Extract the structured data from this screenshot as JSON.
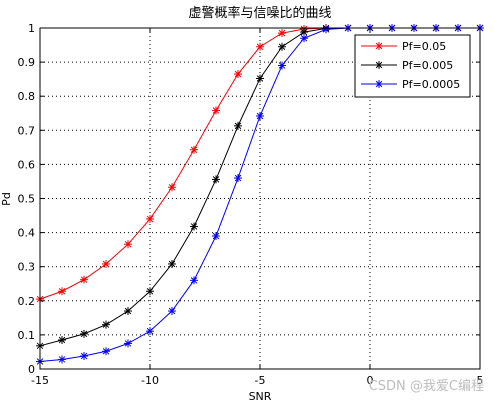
{
  "chart_data": {
    "type": "line",
    "title": "虚警概率与信噪比的曲线",
    "xlabel": "SNR",
    "ylabel": "Pd",
    "xlim": [
      -15,
      5
    ],
    "ylim": [
      0,
      1
    ],
    "xticks": [
      -15,
      -10,
      -5,
      0,
      5
    ],
    "yticks": [
      0,
      0.1,
      0.2,
      0.3,
      0.4,
      0.5,
      0.6,
      0.7,
      0.8,
      0.9,
      1
    ],
    "grid": true,
    "legend_position": "top-right",
    "x": [
      -15,
      -14,
      -13,
      -12,
      -11,
      -10,
      -9,
      -8,
      -7,
      -6,
      -5,
      -4,
      -3,
      -2,
      -1,
      0,
      1,
      2,
      3,
      4,
      5
    ],
    "series": [
      {
        "name": "Pf=0.05",
        "color": "#ff0000",
        "values": [
          0.205,
          0.228,
          0.262,
          0.308,
          0.366,
          0.44,
          0.533,
          0.643,
          0.758,
          0.865,
          0.945,
          0.985,
          0.997,
          1,
          1,
          1,
          1,
          1,
          1,
          1,
          1
        ]
      },
      {
        "name": "Pf=0.005",
        "color": "#000000",
        "values": [
          0.068,
          0.085,
          0.103,
          0.13,
          0.17,
          0.228,
          0.308,
          0.418,
          0.556,
          0.713,
          0.852,
          0.945,
          0.988,
          0.999,
          1,
          1,
          1,
          1,
          1,
          1,
          1
        ]
      },
      {
        "name": "Pf=0.0005",
        "color": "#0000ff",
        "values": [
          0.022,
          0.028,
          0.038,
          0.052,
          0.075,
          0.111,
          0.17,
          0.26,
          0.39,
          0.56,
          0.742,
          0.89,
          0.97,
          0.996,
          1,
          1,
          1,
          1,
          1,
          1,
          1
        ]
      }
    ]
  },
  "watermark": "CSDN @我爱C编程"
}
